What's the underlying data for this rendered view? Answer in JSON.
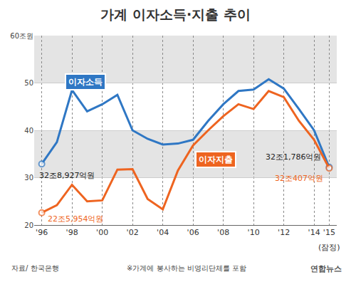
{
  "chart_data": {
    "type": "line",
    "title": "가계 이자소득·지출 추이",
    "x": [
      1996,
      1997,
      1998,
      1999,
      2000,
      2001,
      2002,
      2003,
      2004,
      2005,
      2006,
      2007,
      2008,
      2009,
      2010,
      2011,
      2012,
      2013,
      2014,
      2015
    ],
    "series": [
      {
        "name": "이자소득",
        "color": "#2f77c4",
        "marker": "circle",
        "values": [
          32.9,
          37.5,
          48.5,
          44.0,
          45.5,
          47.5,
          40.0,
          38.2,
          37.0,
          37.2,
          38.0,
          42.0,
          45.5,
          48.3,
          48.6,
          50.8,
          48.8,
          44.5,
          40.0,
          32.2
        ]
      },
      {
        "name": "이자지출",
        "color": "#ee6420",
        "marker": "circle",
        "values": [
          22.6,
          24.2,
          28.5,
          25.0,
          25.2,
          31.7,
          31.8,
          25.5,
          23.3,
          31.5,
          36.8,
          40.0,
          43.0,
          45.5,
          44.5,
          48.3,
          47.0,
          42.0,
          38.0,
          32.0
        ]
      }
    ],
    "xlim": [
      1995.5,
      2015.5
    ],
    "xticks": [
      {
        "value": 1996,
        "label": "'96"
      },
      {
        "value": 1998,
        "label": "'98"
      },
      {
        "value": 2000,
        "label": "'00"
      },
      {
        "value": 2002,
        "label": "'02"
      },
      {
        "value": 2004,
        "label": "'04"
      },
      {
        "value": 2006,
        "label": "'06"
      },
      {
        "value": 2008,
        "label": "'08"
      },
      {
        "value": 2010,
        "label": "'10"
      },
      {
        "value": 2012,
        "label": "'12"
      },
      {
        "value": 2014,
        "label": "'14"
      },
      {
        "value": 2015,
        "label": "'15"
      }
    ],
    "ylim": [
      20,
      60
    ],
    "yticks": [
      20,
      30,
      40,
      50,
      {
        "value": 60,
        "label": "60조원"
      }
    ],
    "grid": true,
    "annotations": [
      {
        "text": "32조8,927억원",
        "x": 1996,
        "y": 32.9,
        "color": "#222222"
      },
      {
        "text": "22조5,954억원",
        "x": 1996,
        "y": 22.6,
        "color": "#ee6420"
      },
      {
        "text": "32조1,786억원",
        "x": 2015,
        "y": 32.2,
        "color": "#222222"
      },
      {
        "text": "32조407억원",
        "x": 2015,
        "y": 32.0,
        "color": "#ee6420"
      }
    ],
    "x_note": {
      "text": "(잠정)",
      "x": 2015
    },
    "source": "자료/ 한국은행",
    "note": "※가계에 봉사하는 비영리단체를 포함",
    "credit": "연합뉴스"
  }
}
